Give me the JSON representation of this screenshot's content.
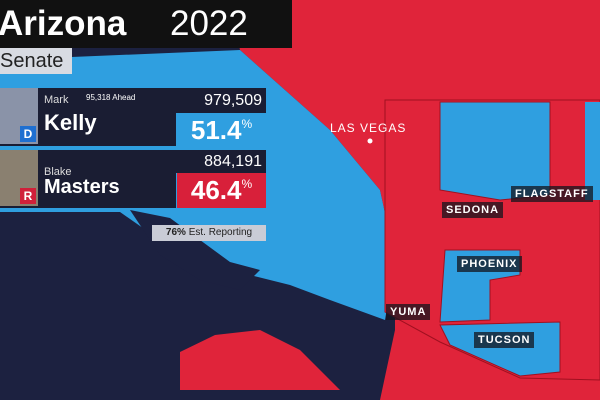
{
  "header": {
    "state": "Arizona",
    "year": "2022",
    "race": "Senate"
  },
  "candidates": [
    {
      "first": "Mark",
      "last": "Kelly",
      "party": "D",
      "lead": "95,318 Ahead",
      "votes": "979,509",
      "percent": {
        "value": "51.4",
        "unit": "%"
      }
    },
    {
      "first": "Blake",
      "last": "Masters",
      "party": "R",
      "votes": "884,191",
      "percent": {
        "value": "46.4",
        "unit": "%"
      }
    }
  ],
  "reporting": {
    "percent": "76%",
    "label": "Est. Reporting"
  },
  "map_labels": [
    "LAS VEGAS",
    "SEDONA",
    "FLAGSTAFF",
    "PHOENIX",
    "YUMA",
    "TUCSON"
  ]
}
